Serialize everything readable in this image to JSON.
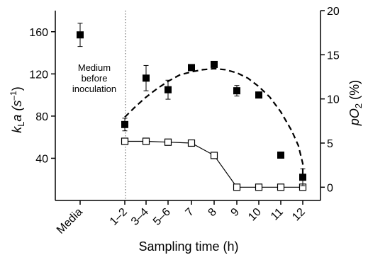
{
  "chart_data": {
    "type": "scatter",
    "x_axis": {
      "title": "Sampling time (h)",
      "categories": [
        "Media",
        "1–2",
        "3–4",
        "5–6",
        "7",
        "8",
        "9",
        "10",
        "11",
        "12"
      ]
    },
    "y_left": {
      "title_main": "k",
      "title_sub": "L",
      "title_tail": "a (s",
      "title_sup": "–1",
      "title_end": ")",
      "ylim": [
        0,
        180
      ],
      "ticks": [
        40,
        80,
        120,
        160
      ]
    },
    "y_right": {
      "title_main": "pO",
      "title_sub": "2",
      "title_tail": " (%)",
      "ylim": [
        -1.5,
        20
      ],
      "ticks": [
        0,
        5,
        10,
        15,
        20
      ]
    },
    "series": [
      {
        "marker": "filled-square",
        "axis": "left",
        "points": [
          {
            "x": "Media",
            "y": 157,
            "err": 11
          },
          {
            "x": "1–2",
            "y": 72,
            "err": 6
          },
          {
            "x": "3–4",
            "y": 116,
            "err": 12
          },
          {
            "x": "5–6",
            "y": 105,
            "err": 9
          },
          {
            "x": "7",
            "y": 126,
            "err": 0
          },
          {
            "x": "8",
            "y": 129,
            "err": 0
          },
          {
            "x": "9",
            "y": 104,
            "err": 5
          },
          {
            "x": "10",
            "y": 100,
            "err": 0
          },
          {
            "x": "11",
            "y": 43,
            "err": 3
          },
          {
            "x": "12",
            "y": 22,
            "err": 8
          }
        ]
      },
      {
        "marker": "open-square",
        "axis": "right",
        "line": "solid",
        "points": [
          {
            "x": "1–2",
            "y": 5.2
          },
          {
            "x": "3–4",
            "y": 5.2
          },
          {
            "x": "5–6",
            "y": 5.1
          },
          {
            "x": "7",
            "y": 5.0
          },
          {
            "x": "8",
            "y": 3.6
          },
          {
            "x": "9",
            "y": 0
          },
          {
            "x": "10",
            "y": 0
          },
          {
            "x": "11",
            "y": 0
          },
          {
            "x": "12",
            "y": 0
          }
        ]
      },
      {
        "marker": "none",
        "axis": "left",
        "line": "dashed",
        "points": [
          {
            "x": 1,
            "y": 79
          },
          {
            "x": 1.5,
            "y": 89
          },
          {
            "x": 2,
            "y": 98
          },
          {
            "x": 2.5,
            "y": 106
          },
          {
            "x": 3,
            "y": 113
          },
          {
            "x": 3.5,
            "y": 119
          },
          {
            "x": 4,
            "y": 122
          },
          {
            "x": 4.5,
            "y": 124
          },
          {
            "x": 5,
            "y": 125
          },
          {
            "x": 5.5,
            "y": 124
          },
          {
            "x": 6,
            "y": 121
          },
          {
            "x": 6.5,
            "y": 116
          },
          {
            "x": 7,
            "y": 108
          },
          {
            "x": 7.5,
            "y": 98
          },
          {
            "x": 8,
            "y": 84
          },
          {
            "x": 8.5,
            "y": 66
          },
          {
            "x": 8.8,
            "y": 52
          },
          {
            "x": 9.1,
            "y": 35
          },
          {
            "x": 9.35,
            "y": 20
          }
        ]
      }
    ],
    "annotation": [
      "Medium",
      "before",
      "inoculation"
    ],
    "reference_line": {
      "x_after": "Media",
      "style": "dotted"
    }
  }
}
